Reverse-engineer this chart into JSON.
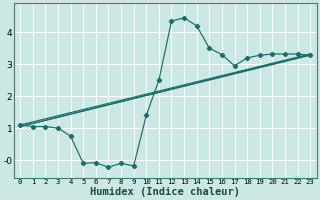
{
  "xlabel": "Humidex (Indice chaleur)",
  "bg_color": "#cce8e4",
  "grid_color": "#ffffff",
  "line_color": "#1a6e65",
  "spine_color": "#4a7a75",
  "xlim": [
    -0.5,
    23.5
  ],
  "ylim": [
    -0.55,
    4.9
  ],
  "xtick_labels": [
    "0",
    "1",
    "2",
    "3",
    "4",
    "5",
    "6",
    "7",
    "8",
    "9",
    "10",
    "11",
    "12",
    "13",
    "14",
    "15",
    "16",
    "17",
    "18",
    "19",
    "20",
    "21",
    "22",
    "23"
  ],
  "xtick_vals": [
    0,
    1,
    2,
    3,
    4,
    5,
    6,
    7,
    8,
    9,
    10,
    11,
    12,
    13,
    14,
    15,
    16,
    17,
    18,
    19,
    20,
    21,
    22,
    23
  ],
  "ytick_vals": [
    4,
    3,
    2,
    1,
    0
  ],
  "ytick_labels": [
    "4",
    "3",
    "2",
    "1",
    "-0"
  ],
  "curve1_x": [
    0,
    1,
    2,
    3,
    4,
    5,
    6,
    7,
    8,
    9,
    10,
    11,
    12,
    13,
    14,
    15,
    16,
    17,
    18,
    19,
    20,
    21,
    22,
    23
  ],
  "curve1_y": [
    1.1,
    1.05,
    1.05,
    1.0,
    0.75,
    -0.1,
    -0.08,
    -0.22,
    -0.1,
    -0.18,
    1.4,
    2.5,
    4.35,
    4.45,
    4.2,
    3.5,
    3.3,
    2.95,
    3.2,
    3.28,
    3.32,
    3.32,
    3.32,
    3.28
  ],
  "line1_x": [
    0,
    23
  ],
  "line1_y": [
    1.05,
    3.28
  ],
  "line2_x": [
    0,
    23
  ],
  "line2_y": [
    1.1,
    3.32
  ],
  "line3_x": [
    0,
    23
  ],
  "line3_y": [
    1.05,
    3.3
  ]
}
